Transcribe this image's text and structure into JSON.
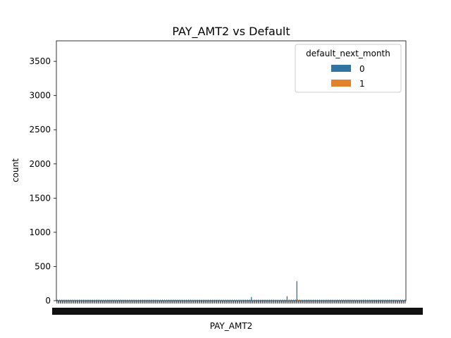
{
  "chart_data": {
    "type": "bar",
    "title": "PAY_AMT2 vs Default",
    "xlabel": "PAY_AMT2",
    "ylabel": "count",
    "ylim": [
      0,
      3800
    ],
    "yticks": [
      0,
      500,
      1000,
      1500,
      2000,
      2500,
      3000,
      3500
    ],
    "grid": false,
    "legend": {
      "title": "default_next_month",
      "placement": "top-right",
      "entries": [
        {
          "label": "0",
          "color": "#3274a1"
        },
        {
          "label": "1",
          "color": "#e1812c"
        }
      ]
    },
    "series": [
      {
        "name": "0",
        "color": "#3274a1",
        "bars": [
          {
            "frac": 0.078,
            "value": 5
          },
          {
            "frac": 0.31,
            "value": 4
          },
          {
            "frac": 0.558,
            "value": 55
          },
          {
            "frac": 0.61,
            "value": 8
          },
          {
            "frac": 0.66,
            "value": 65
          },
          {
            "frac": 0.688,
            "value": 285
          }
        ]
      },
      {
        "name": "1",
        "color": "#e1812c",
        "bars": [
          {
            "frac": 0.558,
            "value": 3
          },
          {
            "frac": 0.66,
            "value": 6
          },
          {
            "frac": 0.688,
            "value": 20
          }
        ]
      }
    ]
  }
}
